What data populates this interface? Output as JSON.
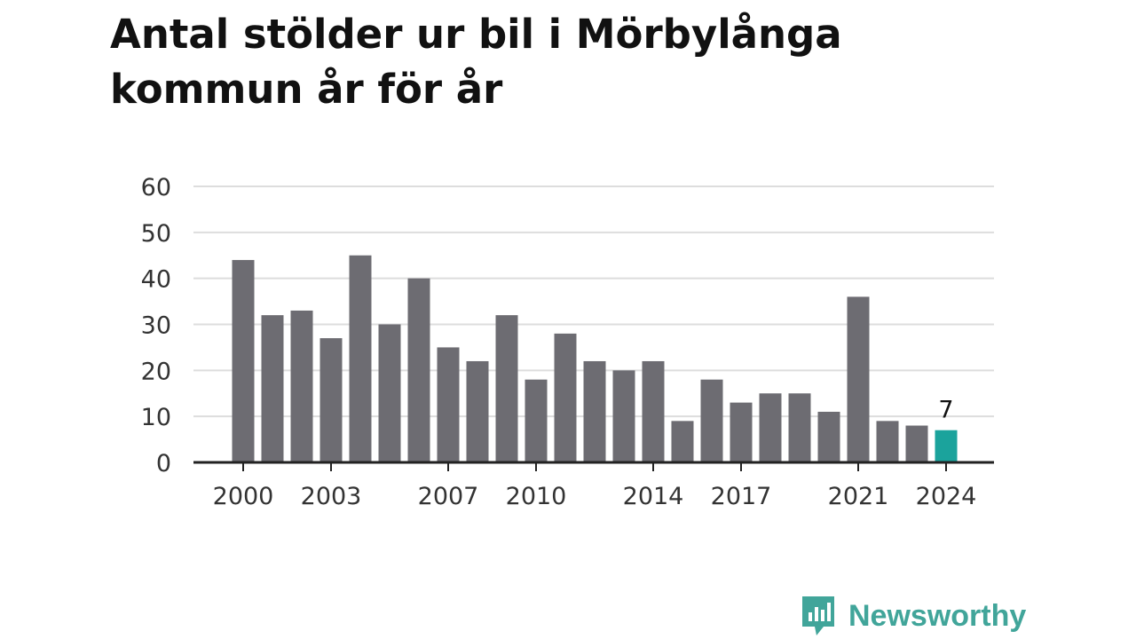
{
  "chart_data": {
    "type": "bar",
    "title": "Antal stölder ur bil i Mörbylånga kommun år för år",
    "xlabel": "",
    "ylabel": "",
    "categories": [
      "2000",
      "2001",
      "2002",
      "2003",
      "2004",
      "2005",
      "2006",
      "2007",
      "2008",
      "2009",
      "2010",
      "2011",
      "2012",
      "2013",
      "2014",
      "2015",
      "2016",
      "2017",
      "2018",
      "2019",
      "2020",
      "2021",
      "2022",
      "2023",
      "2024"
    ],
    "values": [
      44,
      32,
      33,
      27,
      45,
      30,
      40,
      25,
      22,
      32,
      18,
      28,
      22,
      20,
      22,
      9,
      18,
      13,
      15,
      15,
      11,
      36,
      9,
      8,
      7
    ],
    "x_tick_labels": [
      "2000",
      "2003",
      "2007",
      "2010",
      "2014",
      "2017",
      "2021",
      "2024"
    ],
    "y_ticks": [
      0,
      10,
      20,
      30,
      40,
      50,
      60
    ],
    "ylim": [
      0,
      60
    ],
    "grid": true,
    "highlight": {
      "category": "2024",
      "value": 7,
      "label": "7"
    },
    "colors": {
      "bar": "#6d6c72",
      "highlight": "#1ba39c",
      "grid": "#dddddd",
      "axis": "#222222"
    }
  },
  "brand": {
    "name": "Newsworthy",
    "icon": "newsworthy-logo-icon",
    "color": "#41a59a"
  }
}
